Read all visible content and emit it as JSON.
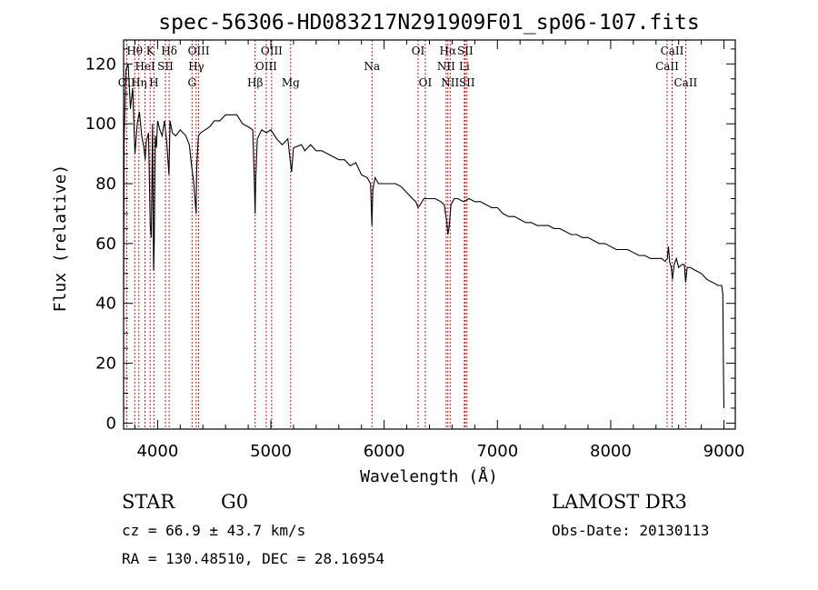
{
  "chart_data": {
    "type": "line",
    "title": "spec-56306-HD083217N291909F01_sp06-107.fits",
    "xlabel": "Wavelength (Å)",
    "ylabel": "Flux (relative)",
    "xlim": [
      3700,
      9100
    ],
    "ylim": [
      -2,
      128
    ],
    "xticks": [
      4000,
      5000,
      6000,
      7000,
      8000,
      9000
    ],
    "yticks": [
      0,
      20,
      40,
      60,
      80,
      100,
      120
    ],
    "spectrum": {
      "x": [
        3700,
        3705,
        3720,
        3740,
        3760,
        3780,
        3800,
        3820,
        3840,
        3860,
        3880,
        3890,
        3900,
        3920,
        3935,
        3945,
        3955,
        3965,
        3970,
        3980,
        3990,
        4000,
        4020,
        4040,
        4060,
        4080,
        4100,
        4110,
        4130,
        4160,
        4200,
        4250,
        4280,
        4300,
        4320,
        4330,
        4340,
        4345,
        4360,
        4380,
        4420,
        4460,
        4500,
        4550,
        4600,
        4650,
        4700,
        4750,
        4800,
        4840,
        4855,
        4861,
        4867,
        4880,
        4920,
        4960,
        5000,
        5050,
        5100,
        5150,
        5170,
        5183,
        5200,
        5270,
        5300,
        5350,
        5400,
        5450,
        5500,
        5550,
        5600,
        5650,
        5700,
        5750,
        5800,
        5850,
        5880,
        5892,
        5900,
        5920,
        5950,
        6000,
        6050,
        6100,
        6150,
        6200,
        6250,
        6280,
        6300,
        6320,
        6350,
        6400,
        6450,
        6500,
        6530,
        6550,
        6563,
        6575,
        6590,
        6620,
        6650,
        6700,
        6750,
        6800,
        6850,
        6900,
        6950,
        7000,
        7050,
        7100,
        7150,
        7200,
        7250,
        7300,
        7350,
        7400,
        7450,
        7500,
        7550,
        7600,
        7650,
        7700,
        7750,
        7800,
        7850,
        7900,
        7950,
        8000,
        8050,
        8100,
        8150,
        8200,
        8250,
        8300,
        8350,
        8400,
        8450,
        8480,
        8500,
        8510,
        8520,
        8535,
        8545,
        8560,
        8580,
        8600,
        8630,
        8650,
        8662,
        8675,
        8700,
        8750,
        8800,
        8850,
        8900,
        8950,
        8980,
        8990,
        8995,
        9000
      ],
      "y": [
        46,
        95,
        118,
        120,
        105,
        112,
        90,
        100,
        104,
        96,
        92,
        88,
        94,
        97,
        66,
        62,
        100,
        51,
        60,
        96,
        92,
        101,
        98,
        96,
        101,
        94,
        83,
        101,
        97,
        96,
        98,
        96,
        93,
        86,
        80,
        75,
        70,
        85,
        96,
        97,
        98,
        99,
        101,
        101,
        103,
        103,
        103,
        100,
        99,
        98,
        80,
        70,
        82,
        95,
        98,
        97,
        98,
        95,
        93,
        95,
        88,
        84,
        92,
        93,
        91,
        93,
        91,
        91,
        90,
        89,
        88,
        88,
        86,
        87,
        83,
        82,
        80,
        66,
        78,
        82,
        80,
        80,
        80,
        80,
        79,
        77,
        75,
        74,
        72,
        73,
        75,
        75,
        75,
        74,
        73,
        68,
        63,
        66,
        73,
        75,
        75,
        74,
        75,
        74,
        74,
        73,
        72,
        72,
        70,
        69,
        69,
        68,
        67,
        67,
        66,
        66,
        66,
        65,
        65,
        64,
        63,
        63,
        62,
        62,
        61,
        60,
        60,
        59,
        58,
        58,
        58,
        57,
        56,
        56,
        55,
        55,
        55,
        54,
        55,
        59,
        54,
        52,
        48,
        53,
        55,
        52,
        53,
        53,
        47,
        52,
        52,
        51,
        50,
        48,
        47,
        46,
        46,
        43,
        20,
        5
      ]
    },
    "line_markers": [
      {
        "name": "OII",
        "wavelength": 3727,
        "row": 3
      },
      {
        "name": "Hθ",
        "wavelength": 3798,
        "row": 1
      },
      {
        "name": "Hη",
        "wavelength": 3835,
        "row": 3
      },
      {
        "name": "HeI",
        "wavelength": 3889,
        "row": 2
      },
      {
        "name": "K",
        "wavelength": 3934,
        "row": 1
      },
      {
        "name": "SII",
        "wavelength": 4069,
        "row": 2
      },
      {
        "name": "Hδ",
        "wavelength": 4102,
        "row": 1
      },
      {
        "name": "H",
        "wavelength": 3968,
        "row": 3
      },
      {
        "name": "G",
        "wavelength": 4304,
        "row": 3
      },
      {
        "name": "Hγ",
        "wavelength": 4341,
        "row": 2
      },
      {
        "name": "OIII",
        "wavelength": 4363,
        "row": 1
      },
      {
        "name": "Hβ",
        "wavelength": 4861,
        "row": 3
      },
      {
        "name": "OIII",
        "wavelength": 4959,
        "row": 2
      },
      {
        "name": "OIII",
        "wavelength": 5007,
        "row": 1
      },
      {
        "name": "Mg",
        "wavelength": 5175,
        "row": 3
      },
      {
        "name": "Na",
        "wavelength": 5893,
        "row": 2
      },
      {
        "name": "OI",
        "wavelength": 6300,
        "row": 1
      },
      {
        "name": "OI",
        "wavelength": 6363,
        "row": 3
      },
      {
        "name": "NII",
        "wavelength": 6548,
        "row": 2
      },
      {
        "name": "Hα",
        "wavelength": 6563,
        "row": 1
      },
      {
        "name": "NII",
        "wavelength": 6583,
        "row": 3
      },
      {
        "name": "SII",
        "wavelength": 6716,
        "row": 1
      },
      {
        "name": "Li",
        "wavelength": 6708,
        "row": 2
      },
      {
        "name": "SII",
        "wavelength": 6731,
        "row": 3
      },
      {
        "name": "CaII",
        "wavelength": 8498,
        "row": 2
      },
      {
        "name": "CaII",
        "wavelength": 8542,
        "row": 1
      },
      {
        "name": "CaII",
        "wavelength": 8662,
        "row": 3
      }
    ]
  },
  "info": {
    "object_class": "STAR",
    "subclass": "G0",
    "survey": "LAMOST DR3",
    "redshift_text": "cz = 66.9 ± 43.7 km/s",
    "obs_date_text": "Obs-Date: 20130113",
    "coords_text": "RA = 130.48510, DEC =  28.16954"
  },
  "colors": {
    "marker": "#c00000",
    "spectrum": "#000000"
  }
}
